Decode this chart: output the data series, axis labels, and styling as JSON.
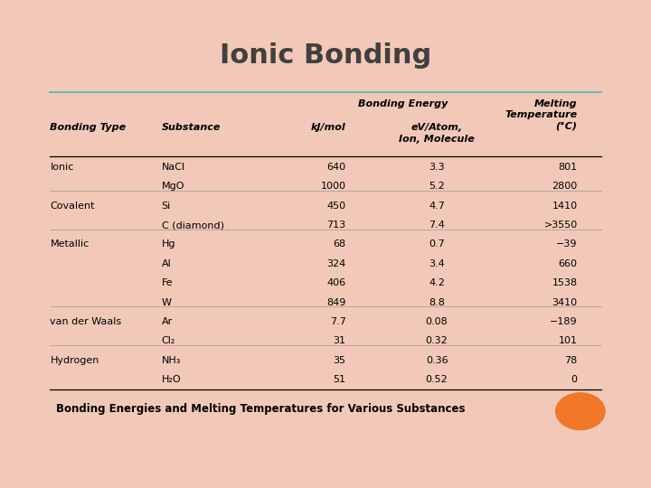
{
  "title": "Ionic Bonding",
  "caption": "Bonding Energies and Melting Temperatures for Various Substances",
  "background_color": "#f2c9b8",
  "slide_bg": "#ffffff",
  "title_color": "#404040",
  "header_line_color": "#6bbcbc",
  "orange_circle_color": "#f07828",
  "rows": [
    {
      "type": "Ionic",
      "substance": "NaCl",
      "kj": "640",
      "ev": "3.3",
      "melt": "801",
      "first_in_group": true
    },
    {
      "type": "",
      "substance": "MgO",
      "kj": "1000",
      "ev": "5.2",
      "melt": "2800",
      "first_in_group": false
    },
    {
      "type": "Covalent",
      "substance": "Si",
      "kj": "450",
      "ev": "4.7",
      "melt": "1410",
      "first_in_group": true
    },
    {
      "type": "",
      "substance": "C (diamond)",
      "kj": "713",
      "ev": "7.4",
      "melt": ">3550",
      "first_in_group": false
    },
    {
      "type": "Metallic",
      "substance": "Hg",
      "kj": "68",
      "ev": "0.7",
      "melt": "−39",
      "first_in_group": true
    },
    {
      "type": "",
      "substance": "Al",
      "kj": "324",
      "ev": "3.4",
      "melt": "660",
      "first_in_group": false
    },
    {
      "type": "",
      "substance": "Fe",
      "kj": "406",
      "ev": "4.2",
      "melt": "1538",
      "first_in_group": false
    },
    {
      "type": "",
      "substance": "W",
      "kj": "849",
      "ev": "8.8",
      "melt": "3410",
      "first_in_group": false
    },
    {
      "type": "van der Waals",
      "substance": "Ar",
      "kj": "7.7",
      "ev": "0.08",
      "melt": "−189",
      "first_in_group": true
    },
    {
      "type": "",
      "substance": "Cl₂",
      "kj": "31",
      "ev": "0.32",
      "melt": "101",
      "first_in_group": false
    },
    {
      "type": "Hydrogen",
      "substance": "NH₃",
      "kj": "35",
      "ev": "0.36",
      "melt": "78",
      "first_in_group": true
    },
    {
      "type": "",
      "substance": "H₂O",
      "kj": "51",
      "ev": "0.52",
      "melt": "0",
      "first_in_group": false
    }
  ]
}
